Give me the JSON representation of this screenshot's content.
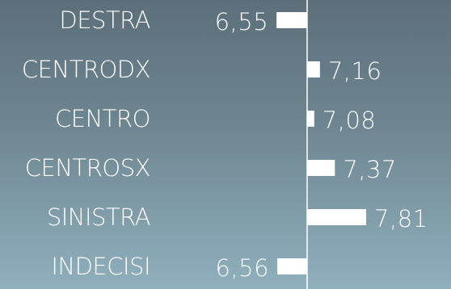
{
  "chart_data": {
    "type": "bar",
    "orientation": "horizontal",
    "categories": [
      "DESTRA",
      "CENTRODX",
      "CENTRO",
      "CENTROSX",
      "SINISTRA",
      "INDECISI"
    ],
    "values": [
      6.55,
      7.16,
      7.08,
      7.37,
      7.81,
      6.56
    ],
    "value_labels": [
      "6,55",
      "7,16",
      "7,08",
      "7,37",
      "7,81",
      "6,56"
    ],
    "baseline": 6.98,
    "title": "",
    "xlabel": "",
    "ylabel": "",
    "grid": false,
    "legend": "none",
    "colors": {
      "bar": "#ffffff",
      "text": "#ffffff",
      "background_top": "#5c6f7b",
      "background_bottom": "#8fb0be"
    }
  }
}
